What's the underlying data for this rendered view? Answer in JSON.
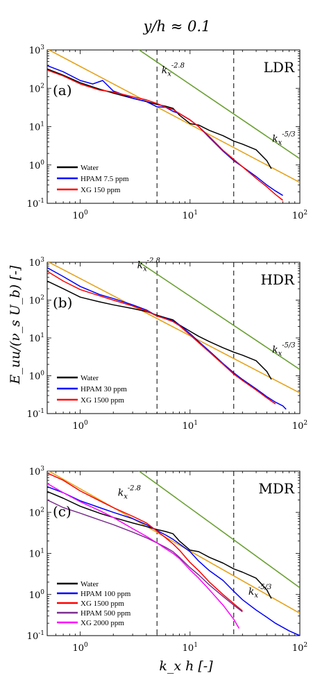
{
  "figure": {
    "title": "y/h ≈ 0.1",
    "xlabel": "k_x h [-]",
    "ylabel": "E_uu/(ν_s U_b) [-]",
    "x_ticks": [
      "10^0",
      "10^1",
      "10^2"
    ],
    "y_ticks": [
      "10^-1",
      "10^0",
      "10^1",
      "10^2",
      "10^3"
    ]
  },
  "chart_data": [
    {
      "type": "line",
      "panel_letter": "(a)",
      "regime": "LDR",
      "xscale": "log",
      "yscale": "log",
      "xlim": [
        0.5,
        100
      ],
      "ylim": [
        0.1,
        1000
      ],
      "legend_placement": "bottom-left",
      "vlines": [
        5,
        25
      ],
      "annotations": [
        {
          "text": "k_x^-2.8",
          "x": 5.5,
          "y": 250
        },
        {
          "text": "k_x^-5/3",
          "x": 56,
          "y": 4
        }
      ],
      "series": [
        {
          "name": "Water",
          "color": "#000000",
          "x": [
            0.5,
            0.7,
            1,
            1.5,
            2,
            3,
            4,
            5,
            6,
            7,
            8,
            10,
            12,
            15,
            20,
            25,
            30,
            40,
            50,
            55
          ],
          "y": [
            320,
            220,
            140,
            95,
            75,
            55,
            45,
            38,
            34,
            30,
            20,
            12,
            11,
            8,
            5.8,
            4.2,
            3.5,
            2.5,
            1.3,
            0.8
          ]
        },
        {
          "name": "HPAM 7.5 ppm",
          "color": "#0000ff",
          "x": [
            0.5,
            0.7,
            1,
            1.3,
            1.6,
            2,
            3,
            4,
            5,
            6,
            7,
            8,
            10,
            12,
            15,
            20,
            25,
            30,
            40,
            50,
            60,
            70
          ],
          "y": [
            390,
            270,
            160,
            130,
            160,
            85,
            55,
            45,
            33,
            32,
            25,
            22,
            15,
            10,
            5.2,
            2.3,
            1.3,
            0.9,
            0.5,
            0.3,
            0.21,
            0.16
          ]
        },
        {
          "name": "XG 150 ppm",
          "color": "#ff0000",
          "x": [
            0.5,
            0.7,
            1,
            1.5,
            2,
            3,
            4,
            5,
            6,
            7,
            8,
            10,
            12,
            15,
            20,
            25,
            30,
            40,
            50,
            60,
            70
          ],
          "y": [
            300,
            210,
            130,
            90,
            80,
            60,
            50,
            40,
            32,
            28,
            22,
            15,
            10,
            5.5,
            2.4,
            1.4,
            0.9,
            0.45,
            0.27,
            0.17,
            0.12
          ]
        }
      ],
      "fits": [
        {
          "label": "k_x^-2.8",
          "color": "#6aa033",
          "x": [
            0.5,
            100
          ],
          "y": [
            42000,
            1.46
          ]
        },
        {
          "label": "k_x^-5/3",
          "color": "#e5a21a",
          "x": [
            0.5,
            100
          ],
          "y": [
            1060,
            0.35
          ]
        }
      ]
    },
    {
      "type": "line",
      "panel_letter": "(b)",
      "regime": "HDR",
      "xscale": "log",
      "yscale": "log",
      "xlim": [
        0.5,
        100
      ],
      "ylim": [
        0.1,
        1000
      ],
      "legend_placement": "bottom-left",
      "vlines": [
        5,
        25
      ],
      "annotations": [
        {
          "text": "k_x^-2.8",
          "x": 3.3,
          "y": 700
        },
        {
          "text": "k_x^-5/3",
          "x": 56,
          "y": 4
        }
      ],
      "series": [
        {
          "name": "Water",
          "color": "#000000",
          "x": [
            0.5,
            0.7,
            1,
            1.5,
            2,
            3,
            4,
            5,
            6,
            7,
            8,
            10,
            12,
            15,
            20,
            25,
            30,
            40,
            50,
            55
          ],
          "y": [
            320,
            200,
            120,
            90,
            75,
            60,
            50,
            40,
            34,
            30,
            22,
            15,
            11,
            8,
            5.5,
            4.2,
            3.5,
            2.5,
            1.3,
            0.8
          ]
        },
        {
          "name": "HPAM 30 ppm",
          "color": "#0000ff",
          "x": [
            0.5,
            0.7,
            1,
            1.5,
            2,
            3,
            4,
            5,
            6,
            7,
            8,
            10,
            12,
            15,
            20,
            25,
            30,
            40,
            50,
            60,
            70,
            75
          ],
          "y": [
            720,
            420,
            230,
            140,
            110,
            75,
            55,
            38,
            33,
            28,
            22,
            13,
            8,
            4.5,
            2.1,
            1.2,
            0.8,
            0.45,
            0.28,
            0.2,
            0.16,
            0.13
          ]
        },
        {
          "name": "XG 1500 ppm",
          "color": "#ff0000",
          "x": [
            0.5,
            0.7,
            1,
            1.5,
            2,
            3,
            4,
            5,
            6,
            7,
            8,
            10,
            12,
            15,
            20,
            25,
            30,
            40,
            50,
            60
          ],
          "y": [
            580,
            320,
            190,
            130,
            100,
            70,
            52,
            38,
            32,
            27,
            21,
            12,
            7.5,
            4.2,
            2,
            1.1,
            0.75,
            0.42,
            0.26,
            0.18
          ]
        }
      ],
      "fits": [
        {
          "label": "k_x^-2.8",
          "color": "#6aa033",
          "x": [
            0.5,
            100
          ],
          "y": [
            42000,
            1.46
          ]
        },
        {
          "label": "k_x^-5/3",
          "color": "#e5a21a",
          "x": [
            0.5,
            100
          ],
          "y": [
            1060,
            0.35
          ]
        }
      ]
    },
    {
      "type": "line",
      "panel_letter": "(c)",
      "regime": "MDR",
      "xscale": "log",
      "yscale": "log",
      "xlim": [
        0.5,
        100
      ],
      "ylim": [
        0.1,
        1000
      ],
      "legend_placement": "bottom-left",
      "vlines": [
        5,
        25
      ],
      "annotations": [
        {
          "text": "k_x^-2.8",
          "x": 2.2,
          "y": 250
        },
        {
          "text": "k_x^-5/3",
          "x": 34,
          "y": 1
        }
      ],
      "series": [
        {
          "name": "Water",
          "color": "#000000",
          "x": [
            0.5,
            0.7,
            1,
            1.5,
            2,
            3,
            4,
            5,
            6,
            7,
            8,
            10,
            12,
            15,
            20,
            25,
            30,
            40,
            50,
            55
          ],
          "y": [
            320,
            220,
            140,
            95,
            75,
            55,
            45,
            38,
            34,
            30,
            20,
            12,
            11,
            8,
            5.8,
            4.2,
            3.5,
            2.5,
            1.3,
            0.8
          ]
        },
        {
          "name": "HPAM 100 ppm",
          "color": "#0000ff",
          "x": [
            0.5,
            0.7,
            1,
            1.5,
            2,
            3,
            4,
            5,
            6,
            7,
            8,
            10,
            12,
            15,
            20,
            25,
            30,
            40,
            50,
            60,
            80,
            100
          ],
          "y": [
            420,
            300,
            190,
            130,
            100,
            70,
            50,
            36,
            28,
            22,
            17,
            11,
            6.5,
            3.8,
            2.2,
            1.2,
            0.75,
            0.42,
            0.28,
            0.2,
            0.13,
            0.1
          ]
        },
        {
          "name": "XG 1500 ppm",
          "color": "#ff0000",
          "x": [
            0.5,
            0.7,
            1,
            1.5,
            2,
            3,
            4,
            5,
            6,
            7,
            8,
            10,
            12,
            15,
            20,
            25,
            30
          ],
          "y": [
            900,
            600,
            330,
            190,
            130,
            80,
            55,
            35,
            24,
            17,
            12,
            6,
            3.8,
            2,
            1,
            0.6,
            0.4
          ]
        },
        {
          "name": "HPAM 500 ppm",
          "color": "#7b2d8e",
          "x": [
            0.5,
            0.7,
            1,
            1.5,
            2,
            3,
            4,
            5,
            6,
            7,
            8,
            10,
            12,
            15,
            20,
            25,
            30
          ],
          "y": [
            200,
            130,
            95,
            65,
            50,
            33,
            24,
            18,
            14,
            11,
            8,
            4.5,
            3,
            1.7,
            0.9,
            0.55,
            0.38
          ]
        },
        {
          "name": "XG 2000 ppm",
          "color": "#ff00ff",
          "x": [
            0.5,
            0.7,
            1,
            1.5,
            2,
            3,
            4,
            5,
            6,
            7,
            8,
            10,
            12,
            15,
            20,
            25,
            28
          ],
          "y": [
            500,
            300,
            180,
            110,
            75,
            40,
            26,
            18,
            13,
            10,
            7.5,
            4,
            2.5,
            1.3,
            0.55,
            0.25,
            0.15
          ]
        }
      ],
      "fits": [
        {
          "label": "k_x^-2.8",
          "color": "#6aa033",
          "x": [
            0.5,
            100
          ],
          "y": [
            42000,
            1.46
          ]
        },
        {
          "label": "k_x^-5/3",
          "color": "#e5a21a",
          "x": [
            0.5,
            100
          ],
          "y": [
            1060,
            0.35
          ]
        }
      ]
    }
  ]
}
